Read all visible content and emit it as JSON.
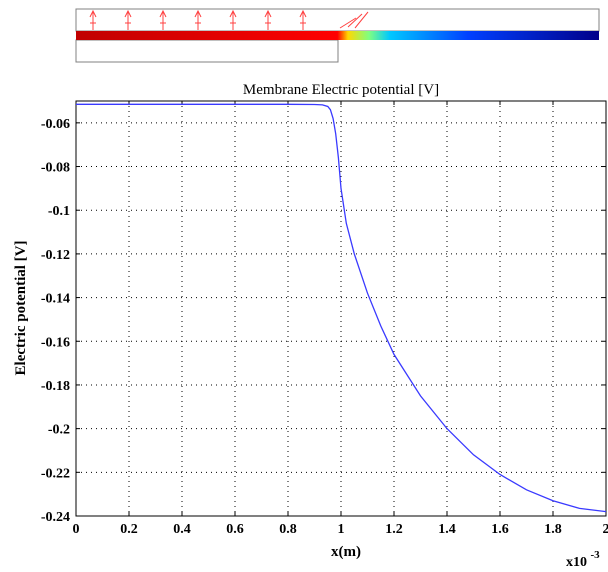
{
  "chart_data": {
    "type": "line",
    "title": "Membrane Electric potential [V]",
    "xlabel": "x(m)",
    "ylabel": "Electric potential [V]",
    "x_multiplier": "x10",
    "x_exponent": "-3",
    "xlim": [
      0,
      2
    ],
    "ylim": [
      -0.24,
      -0.05
    ],
    "xticks": [
      0,
      0.2,
      0.4,
      0.6,
      0.8,
      1,
      1.2,
      1.4,
      1.6,
      1.8,
      2
    ],
    "xtick_labels": [
      "0",
      "0.2",
      "0.4",
      "0.6",
      "0.8",
      "1",
      "1.2",
      "1.4",
      "1.6",
      "1.8",
      "2"
    ],
    "yticks": [
      -0.06,
      -0.08,
      -0.1,
      -0.12,
      -0.14,
      -0.16,
      -0.18,
      -0.2,
      -0.22,
      -0.24
    ],
    "ytick_labels": [
      "-0.06",
      "-0.08",
      "-0.1",
      "-0.12",
      "-0.14",
      "-0.16",
      "-0.18",
      "-0.2",
      "-0.22",
      "-0.24"
    ],
    "grid": true,
    "line_color": "#3a3aff",
    "series": [
      {
        "x": [
          0,
          0.2,
          0.4,
          0.6,
          0.8,
          0.9,
          0.93,
          0.95,
          0.96,
          0.97,
          0.98,
          0.99,
          1.0,
          1.02,
          1.05,
          1.1,
          1.15,
          1.2,
          1.3,
          1.4,
          1.5,
          1.6,
          1.7,
          1.8,
          1.9,
          2.0
        ],
        "y": [
          -0.0515,
          -0.0515,
          -0.0515,
          -0.0515,
          -0.0515,
          -0.0516,
          -0.0518,
          -0.0525,
          -0.054,
          -0.058,
          -0.065,
          -0.076,
          -0.09,
          -0.106,
          -0.12,
          -0.138,
          -0.153,
          -0.166,
          -0.185,
          -0.2,
          -0.212,
          -0.221,
          -0.228,
          -0.233,
          -0.2365,
          -0.238
        ]
      }
    ]
  },
  "membrane_colormap": [
    "#c00000",
    "#ff0000",
    "#ffd800",
    "#80ff80",
    "#00c8ff",
    "#0040ff",
    "#00008a"
  ]
}
